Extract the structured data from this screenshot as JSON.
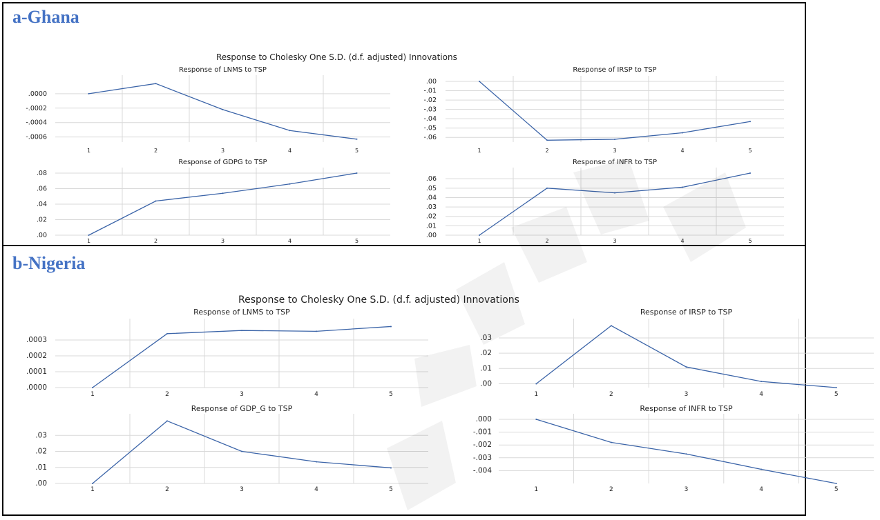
{
  "panels": [
    {
      "heading": "a-Ghana",
      "suptitle": "Response to Cholesky One S.D. (d.f. adjusted) Innovations"
    },
    {
      "heading": "b-Nigeria",
      "suptitle": "Response to Cholesky One S.D. (d.f. adjusted) Innovations"
    }
  ],
  "colors": {
    "heading": "#4472C4",
    "line": "#3B64A8",
    "grid": "#D9D9D9"
  },
  "chart_data": [
    {
      "type": "line",
      "panel": "a-Ghana",
      "title": "Response of LNMS to TSP",
      "categories": [
        "1",
        "2",
        "3",
        "4",
        "5"
      ],
      "values": [
        0.0,
        0.00014,
        -0.00022,
        -0.00051,
        -0.00063
      ],
      "ylim": [
        -0.00067,
        0.00018
      ],
      "yticks": [
        0,
        -0.0002,
        -0.0004,
        -0.0006
      ],
      "ytick_labels": [
        ".0000",
        "-.0002",
        "-.0004",
        "-.0006"
      ],
      "grid": true
    },
    {
      "type": "line",
      "panel": "a-Ghana",
      "title": "Response of IRSP to TSP",
      "categories": [
        "1",
        "2",
        "3",
        "4",
        "5"
      ],
      "values": [
        0.0,
        -0.063,
        -0.062,
        -0.055,
        -0.043
      ],
      "ylim": [
        -0.065,
        0.0
      ],
      "yticks": [
        0,
        -0.01,
        -0.02,
        -0.03,
        -0.04,
        -0.05,
        -0.06
      ],
      "ytick_labels": [
        ".00",
        "-.01",
        "-.02",
        "-.03",
        "-.04",
        "-.05",
        "-.06"
      ],
      "grid": true
    },
    {
      "type": "line",
      "panel": "a-Ghana",
      "title": "Response of GDPG to TSP",
      "categories": [
        "1",
        "2",
        "3",
        "4",
        "5"
      ],
      "values": [
        0.0,
        0.044,
        0.054,
        0.066,
        0.08
      ],
      "ylim": [
        0.0,
        0.08
      ],
      "yticks": [
        0,
        0.02,
        0.04,
        0.06,
        0.08
      ],
      "ytick_labels": [
        ".00",
        ".02",
        ".04",
        ".06",
        ".08"
      ],
      "grid": true
    },
    {
      "type": "line",
      "panel": "a-Ghana",
      "title": "Response of INFR to TSP",
      "categories": [
        "1",
        "2",
        "3",
        "4",
        "5"
      ],
      "values": [
        0.0,
        0.05,
        0.045,
        0.051,
        0.066
      ],
      "ylim": [
        0.0,
        0.066
      ],
      "yticks": [
        0,
        0.01,
        0.02,
        0.03,
        0.04,
        0.05,
        0.06
      ],
      "ytick_labels": [
        ".00",
        ".01",
        ".02",
        ".03",
        ".04",
        ".05",
        ".06"
      ],
      "grid": true
    },
    {
      "type": "line",
      "panel": "b-Nigeria",
      "title": "Response of LNMS to TSP",
      "categories": [
        "1",
        "2",
        "3",
        "4",
        "5"
      ],
      "values": [
        0.0,
        0.00034,
        0.00036,
        0.000355,
        0.000385
      ],
      "ylim": [
        0.0,
        0.0004
      ],
      "yticks": [
        0,
        0.0001,
        0.0002,
        0.0003
      ],
      "ytick_labels": [
        ".0000",
        ".0001",
        ".0002",
        ".0003"
      ],
      "grid": true
    },
    {
      "type": "line",
      "panel": "b-Nigeria",
      "title": "Response of IRSP to TSP",
      "categories": [
        "1",
        "2",
        "3",
        "4",
        "5"
      ],
      "values": [
        0.0,
        0.038,
        0.011,
        0.0015,
        -0.0025
      ],
      "ylim": [
        -0.0025,
        0.039
      ],
      "yticks": [
        0,
        0.01,
        0.02,
        0.03
      ],
      "ytick_labels": [
        ".00",
        ".01",
        ".02",
        ".03"
      ],
      "grid": true
    },
    {
      "type": "line",
      "panel": "b-Nigeria",
      "title": "Response of GDP_G to TSP",
      "categories": [
        "1",
        "2",
        "3",
        "4",
        "5"
      ],
      "values": [
        0.0,
        0.039,
        0.02,
        0.0135,
        0.0097
      ],
      "ylim": [
        0.0,
        0.04
      ],
      "yticks": [
        0,
        0.01,
        0.02,
        0.03
      ],
      "ytick_labels": [
        ".00",
        ".01",
        ".02",
        ".03"
      ],
      "grid": true
    },
    {
      "type": "line",
      "panel": "b-Nigeria",
      "title": "Response of INFR to TSP",
      "categories": [
        "1",
        "2",
        "3",
        "4",
        "5"
      ],
      "values": [
        0.0,
        -0.0018,
        -0.0027,
        -0.0039,
        -0.005
      ],
      "ylim": [
        -0.005,
        0.0
      ],
      "yticks": [
        0,
        -0.001,
        -0.002,
        -0.003,
        -0.004
      ],
      "ytick_labels": [
        ".000",
        "-.001",
        "-.002",
        "-.003",
        "-.004"
      ],
      "grid": true
    }
  ]
}
